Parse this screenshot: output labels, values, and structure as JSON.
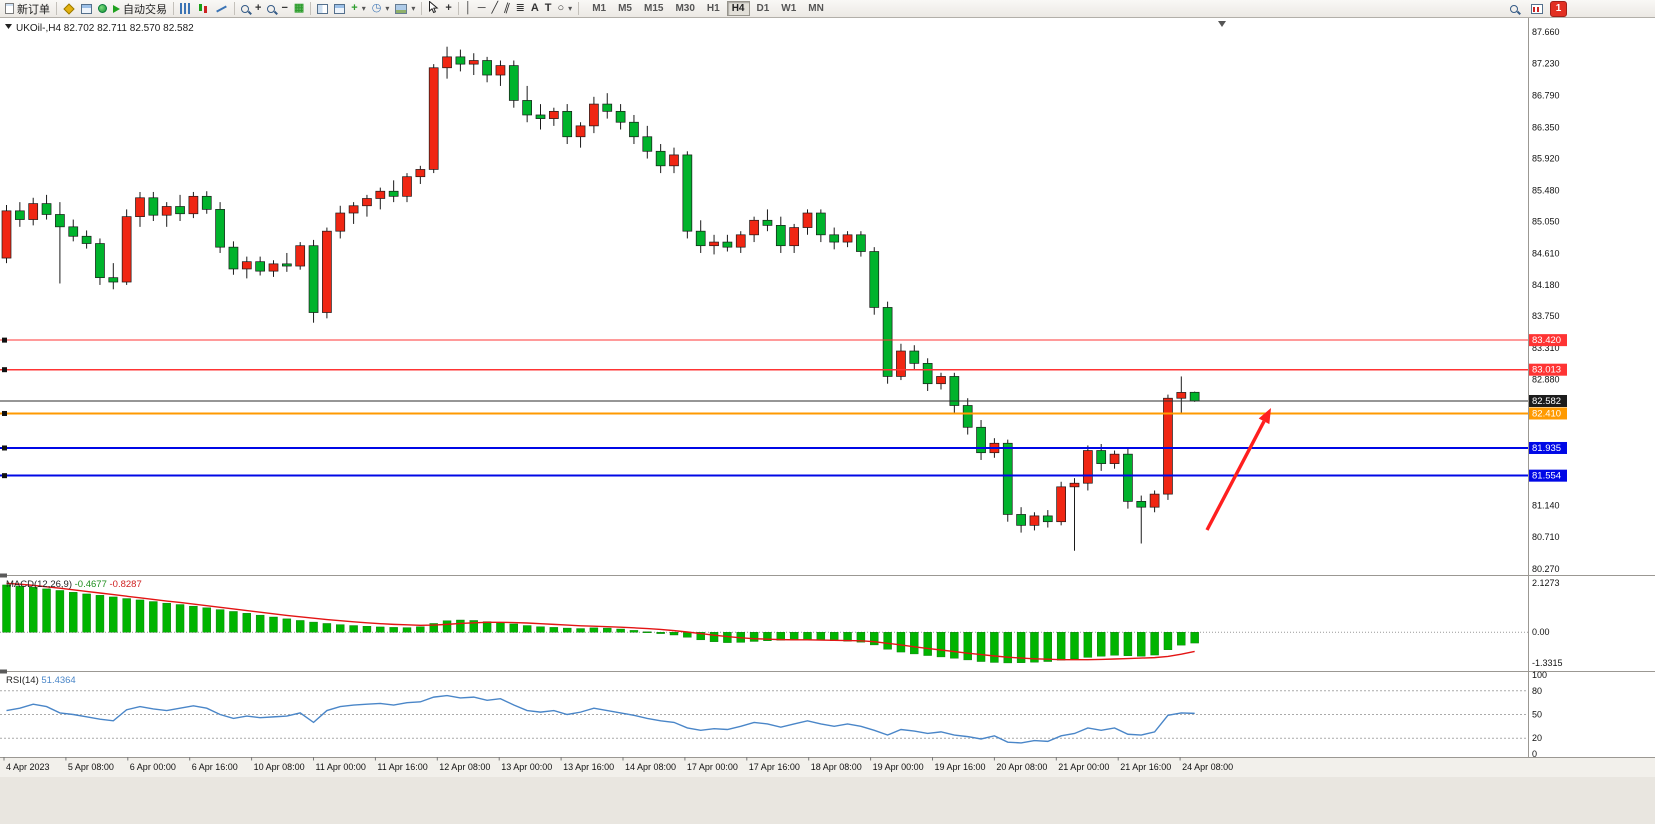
{
  "toolbar": {
    "new_order_label": "新订单",
    "auto_trading_label": "自动交易",
    "timeframes": [
      "M1",
      "M5",
      "M15",
      "M30",
      "H1",
      "H4",
      "D1",
      "W1",
      "MN"
    ],
    "active_timeframe": "H4",
    "notification_count": "1"
  },
  "icons": {
    "caret": "▾",
    "grid": "▦",
    "zoom_plus": "+",
    "zoom_minus": "−",
    "indicator_plus": "+",
    "clock": "◷",
    "crosshair": "+",
    "vline": "│",
    "hline": "─",
    "trendline": "╱",
    "channel": "∥",
    "fibonacci": "≣",
    "text_tool": "A",
    "label_tool": "T",
    "ellipse": "○"
  },
  "chart_data": {
    "type": "candlestick",
    "symbol": "UKOil-",
    "period": "H4",
    "title": "UKOil-,H4 82.702 82.711 82.570 82.582",
    "ohlc_current": {
      "open": "82.702",
      "high": "82.711",
      "low": "82.570",
      "close": "82.582"
    },
    "up_color": "#f02613",
    "down_color": "#00b32c",
    "y_range": [
      80.2,
      87.8
    ],
    "price_axis_labels": [
      "87.660",
      "87.230",
      "86.790",
      "86.350",
      "85.920",
      "85.480",
      "85.050",
      "84.610",
      "84.180",
      "83.750",
      "83.310",
      "82.880",
      "81.140",
      "80.710",
      "80.270"
    ],
    "hlines": [
      {
        "name": "resistance-line-83420",
        "price": 83.42,
        "label": "83.420",
        "color": "#ff3434",
        "width": 1.2
      },
      {
        "name": "resistance-line-83013",
        "price": 83.013,
        "label": "83.013",
        "color": "#ff3434",
        "width": 1.2
      },
      {
        "name": "current-price-line",
        "price": 82.582,
        "label": "82.582",
        "color": "#2e2e2e",
        "width": 1,
        "badge": "#1c1c1c",
        "nomarker": true
      },
      {
        "name": "orange-level-line",
        "price": 82.41,
        "label": "82.410",
        "color": "#ff9a00",
        "width": 2
      },
      {
        "name": "support-line-81935",
        "price": 81.935,
        "label": "81.935",
        "color": "#0008e6",
        "width": 2
      },
      {
        "name": "support-line-81554",
        "price": 81.554,
        "label": "81.554",
        "color": "#0008e6",
        "width": 2
      }
    ],
    "candles": [
      [
        84.55,
        85.28,
        84.48,
        85.2
      ],
      [
        85.2,
        85.32,
        84.98,
        85.08
      ],
      [
        85.08,
        85.38,
        85.0,
        85.3
      ],
      [
        85.3,
        85.42,
        85.08,
        85.15
      ],
      [
        85.15,
        85.32,
        84.2,
        84.98
      ],
      [
        84.98,
        85.08,
        84.78,
        84.85
      ],
      [
        84.85,
        84.93,
        84.68,
        84.75
      ],
      [
        84.75,
        84.82,
        84.18,
        84.28
      ],
      [
        84.28,
        84.48,
        84.12,
        84.22
      ],
      [
        84.22,
        85.22,
        84.18,
        85.12
      ],
      [
        85.12,
        85.46,
        84.98,
        85.38
      ],
      [
        85.38,
        85.46,
        85.06,
        85.14
      ],
      [
        85.14,
        85.32,
        84.98,
        85.26
      ],
      [
        85.26,
        85.42,
        85.06,
        85.16
      ],
      [
        85.16,
        85.46,
        85.1,
        85.4
      ],
      [
        85.4,
        85.47,
        85.16,
        85.22
      ],
      [
        85.22,
        85.32,
        84.62,
        84.7
      ],
      [
        84.7,
        84.78,
        84.32,
        84.4
      ],
      [
        84.4,
        84.57,
        84.27,
        84.5
      ],
      [
        84.5,
        84.57,
        84.31,
        84.37
      ],
      [
        84.37,
        84.52,
        84.29,
        84.47
      ],
      [
        84.47,
        84.62,
        84.36,
        84.44
      ],
      [
        84.44,
        84.77,
        84.39,
        84.72
      ],
      [
        84.72,
        84.8,
        83.66,
        83.8
      ],
      [
        83.8,
        84.97,
        83.72,
        84.92
      ],
      [
        84.92,
        85.27,
        84.82,
        85.17
      ],
      [
        85.17,
        85.32,
        85.02,
        85.27
      ],
      [
        85.27,
        85.42,
        85.12,
        85.37
      ],
      [
        85.37,
        85.52,
        85.22,
        85.47
      ],
      [
        85.47,
        85.62,
        85.32,
        85.4
      ],
      [
        85.4,
        85.72,
        85.32,
        85.67
      ],
      [
        85.67,
        85.82,
        85.57,
        85.77
      ],
      [
        85.77,
        87.22,
        85.72,
        87.17
      ],
      [
        87.17,
        87.46,
        87.02,
        87.32
      ],
      [
        87.32,
        87.42,
        87.12,
        87.22
      ],
      [
        87.22,
        87.37,
        87.07,
        87.27
      ],
      [
        87.27,
        87.32,
        86.97,
        87.07
      ],
      [
        87.07,
        87.27,
        86.92,
        87.2
      ],
      [
        87.2,
        87.27,
        86.62,
        86.72
      ],
      [
        86.72,
        86.92,
        86.42,
        86.52
      ],
      [
        86.52,
        86.67,
        86.32,
        86.47
      ],
      [
        86.47,
        86.62,
        86.37,
        86.57
      ],
      [
        86.57,
        86.67,
        86.12,
        86.22
      ],
      [
        86.22,
        86.42,
        86.07,
        86.37
      ],
      [
        86.37,
        86.77,
        86.27,
        86.67
      ],
      [
        86.67,
        86.82,
        86.47,
        86.57
      ],
      [
        86.57,
        86.67,
        86.32,
        86.42
      ],
      [
        86.42,
        86.52,
        86.12,
        86.22
      ],
      [
        86.22,
        86.37,
        85.92,
        86.02
      ],
      [
        86.02,
        86.12,
        85.72,
        85.82
      ],
      [
        85.82,
        86.07,
        85.72,
        85.97
      ],
      [
        85.97,
        86.02,
        84.82,
        84.92
      ],
      [
        84.92,
        85.07,
        84.62,
        84.72
      ],
      [
        84.72,
        84.87,
        84.6,
        84.77
      ],
      [
        84.77,
        84.87,
        84.64,
        84.7
      ],
      [
        84.7,
        84.92,
        84.62,
        84.87
      ],
      [
        84.87,
        85.12,
        84.77,
        85.07
      ],
      [
        85.07,
        85.22,
        84.92,
        85.0
      ],
      [
        85.0,
        85.12,
        84.62,
        84.72
      ],
      [
        84.72,
        85.02,
        84.62,
        84.97
      ],
      [
        84.97,
        85.22,
        84.87,
        85.17
      ],
      [
        85.17,
        85.22,
        84.77,
        84.87
      ],
      [
        84.87,
        84.97,
        84.67,
        84.77
      ],
      [
        84.77,
        84.92,
        84.7,
        84.87
      ],
      [
        84.87,
        84.92,
        84.57,
        84.64
      ],
      [
        84.64,
        84.7,
        83.77,
        83.87
      ],
      [
        83.87,
        83.95,
        82.82,
        82.92
      ],
      [
        82.92,
        83.37,
        82.87,
        83.27
      ],
      [
        83.27,
        83.35,
        83.02,
        83.1
      ],
      [
        83.1,
        83.17,
        82.72,
        82.82
      ],
      [
        82.82,
        82.97,
        82.74,
        82.92
      ],
      [
        82.92,
        82.97,
        82.42,
        82.52
      ],
      [
        82.52,
        82.62,
        82.12,
        82.22
      ],
      [
        82.22,
        82.32,
        81.77,
        81.87
      ],
      [
        81.87,
        82.07,
        81.8,
        82.0
      ],
      [
        82.0,
        82.05,
        80.92,
        81.02
      ],
      [
        81.02,
        81.12,
        80.77,
        80.87
      ],
      [
        80.87,
        81.05,
        80.8,
        81.0
      ],
      [
        81.0,
        81.08,
        80.84,
        80.92
      ],
      [
        80.92,
        81.47,
        80.87,
        81.4
      ],
      [
        81.4,
        81.52,
        80.52,
        81.45
      ],
      [
        81.45,
        81.97,
        81.35,
        81.9
      ],
      [
        81.9,
        81.99,
        81.62,
        81.72
      ],
      [
        81.72,
        81.9,
        81.65,
        81.85
      ],
      [
        81.85,
        81.93,
        81.1,
        81.2
      ],
      [
        81.2,
        81.28,
        80.62,
        81.12
      ],
      [
        81.12,
        81.35,
        81.05,
        81.3
      ],
      [
        81.3,
        82.67,
        81.22,
        82.62
      ],
      [
        82.62,
        82.92,
        82.42,
        82.7
      ],
      [
        82.702,
        82.711,
        82.57,
        82.582
      ]
    ],
    "macd": {
      "label": "MACD(12,26,9)",
      "value": "-0.4677",
      "signal_value": "-0.8287",
      "range": [
        -1.55,
        2.35
      ],
      "scale_labels": [
        "2.1273",
        "0.00",
        "-1.3315"
      ],
      "histogram": [
        2.05,
        2.0,
        1.95,
        1.88,
        1.81,
        1.73,
        1.66,
        1.6,
        1.53,
        1.46,
        1.4,
        1.33,
        1.26,
        1.2,
        1.13,
        1.06,
        0.98,
        0.9,
        0.82,
        0.74,
        0.66,
        0.58,
        0.51,
        0.44,
        0.38,
        0.33,
        0.29,
        0.26,
        0.23,
        0.21,
        0.2,
        0.24,
        0.38,
        0.5,
        0.53,
        0.51,
        0.46,
        0.42,
        0.36,
        0.29,
        0.24,
        0.21,
        0.18,
        0.16,
        0.19,
        0.18,
        0.14,
        0.08,
        0.02,
        -0.06,
        -0.12,
        -0.22,
        -0.33,
        -0.41,
        -0.45,
        -0.44,
        -0.4,
        -0.37,
        -0.35,
        -0.34,
        -0.33,
        -0.34,
        -0.37,
        -0.39,
        -0.43,
        -0.55,
        -0.74,
        -0.86,
        -0.94,
        -1.01,
        -1.07,
        -1.13,
        -1.2,
        -1.27,
        -1.31,
        -1.33,
        -1.32,
        -1.3,
        -1.27,
        -1.21,
        -1.16,
        -1.09,
        -1.04,
        -1.0,
        -1.02,
        -1.04,
        -0.99,
        -0.76,
        -0.56,
        -0.47
      ],
      "signal": [
        2.12,
        2.08,
        2.03,
        1.97,
        1.91,
        1.84,
        1.77,
        1.7,
        1.63,
        1.56,
        1.49,
        1.42,
        1.35,
        1.29,
        1.22,
        1.15,
        1.08,
        1.01,
        0.94,
        0.87,
        0.8,
        0.73,
        0.67,
        0.61,
        0.55,
        0.5,
        0.45,
        0.41,
        0.37,
        0.34,
        0.32,
        0.3,
        0.31,
        0.34,
        0.38,
        0.41,
        0.43,
        0.43,
        0.42,
        0.4,
        0.37,
        0.34,
        0.31,
        0.28,
        0.26,
        0.24,
        0.22,
        0.19,
        0.16,
        0.12,
        0.07,
        0.01,
        -0.06,
        -0.13,
        -0.19,
        -0.24,
        -0.28,
        -0.3,
        -0.32,
        -0.33,
        -0.33,
        -0.34,
        -0.35,
        -0.36,
        -0.37,
        -0.41,
        -0.48,
        -0.55,
        -0.63,
        -0.7,
        -0.77,
        -0.84,
        -0.91,
        -0.97,
        -1.03,
        -1.08,
        -1.12,
        -1.15,
        -1.17,
        -1.19,
        -1.19,
        -1.19,
        -1.18,
        -1.16,
        -1.14,
        -1.12,
        -1.1,
        -1.05,
        -0.95,
        -0.83
      ]
    },
    "rsi": {
      "label": "RSI(14)",
      "value": "51.4364",
      "scale_labels": [
        "100",
        "80",
        "50",
        "20",
        "0"
      ],
      "levels": [
        80,
        50,
        20
      ],
      "values": [
        55,
        58,
        63,
        60,
        52,
        50,
        47,
        44,
        42,
        56,
        60,
        57,
        55,
        58,
        61,
        58,
        50,
        45,
        48,
        46,
        47,
        48,
        52,
        40,
        55,
        60,
        62,
        63,
        64,
        62,
        65,
        66,
        72,
        74,
        71,
        72,
        68,
        70,
        62,
        55,
        53,
        55,
        50,
        53,
        58,
        55,
        52,
        49,
        45,
        42,
        40,
        33,
        30,
        32,
        31,
        35,
        40,
        38,
        34,
        38,
        42,
        38,
        35,
        38,
        35,
        30,
        24,
        31,
        29,
        26,
        28,
        24,
        22,
        19,
        23,
        15,
        14,
        17,
        16,
        23,
        26,
        33,
        30,
        33,
        25,
        24,
        28,
        49,
        52,
        51.4364
      ]
    },
    "time_labels": [
      "4 Apr 2023",
      "5 Apr 08:00",
      "6 Apr 00:00",
      "6 Apr 16:00",
      "10 Apr 08:00",
      "11 Apr 00:00",
      "11 Apr 16:00",
      "12 Apr 08:00",
      "13 Apr 00:00",
      "13 Apr 16:00",
      "14 Apr 08:00",
      "17 Apr 00:00",
      "17 Apr 16:00",
      "18 Apr 08:00",
      "19 Apr 00:00",
      "19 Apr 16:00",
      "20 Apr 08:00",
      "21 Apr 00:00",
      "21 Apr 16:00",
      "24 Apr 08:00"
    ],
    "arrow": {
      "from": [
        1207,
        512
      ],
      "to": [
        1271,
        390
      ],
      "color": "#ff1f1f"
    }
  }
}
